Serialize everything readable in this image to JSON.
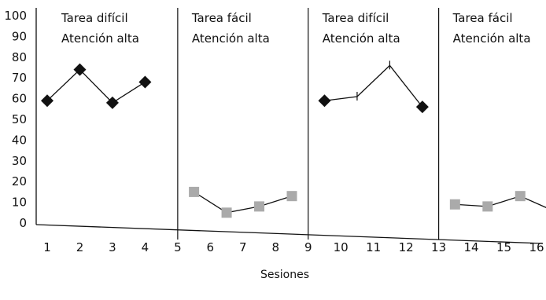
{
  "chart_data": {
    "type": "line",
    "xlabel": "Sesiones",
    "ylabel": "",
    "xlim": [
      1,
      16
    ],
    "ylim": [
      0,
      100
    ],
    "x_ticks": [
      "1",
      "2",
      "3",
      "4",
      "5",
      "6",
      "7",
      "8",
      "9",
      "10",
      "11",
      "12",
      "13",
      "14",
      "15",
      "16"
    ],
    "y_ticks": [
      "0",
      "10",
      "20",
      "30",
      "40",
      "50",
      "60",
      "70",
      "80",
      "90",
      "100"
    ],
    "grid": false,
    "legend": "none",
    "phase_boundaries": [
      5,
      9,
      13
    ],
    "phases": [
      {
        "line1": "Tarea difícil",
        "line2": "Atención alta"
      },
      {
        "line1": "Tarea fácil",
        "line2": "Atención alta"
      },
      {
        "line1": "Tarea difícil",
        "line2": "Atención alta"
      },
      {
        "line1": "Tarea fácil",
        "line2": "Atención alta"
      }
    ],
    "series": [
      {
        "marker": "diamond",
        "color": "#111111",
        "x": [
          1,
          2,
          3,
          4
        ],
        "values": [
          59,
          74,
          58,
          68
        ]
      },
      {
        "marker": "square",
        "color": "#aaaaaa",
        "x": [
          5.5,
          6.5,
          7.5,
          8.5
        ],
        "values": [
          15,
          5,
          8,
          13
        ]
      },
      {
        "marker": "diamond",
        "color": "#111111",
        "x": [
          9.5,
          10.5,
          11.5,
          12.5
        ],
        "values": [
          59,
          61,
          76,
          56
        ]
      },
      {
        "marker": "square",
        "color": "#aaaaaa",
        "x": [
          13.5,
          14.5,
          15.5,
          16.5
        ],
        "values": [
          9,
          8,
          13,
          6
        ]
      }
    ],
    "unmarked_points": [
      {
        "series": 2,
        "index": 1
      },
      {
        "series": 2,
        "index": 2
      }
    ]
  }
}
